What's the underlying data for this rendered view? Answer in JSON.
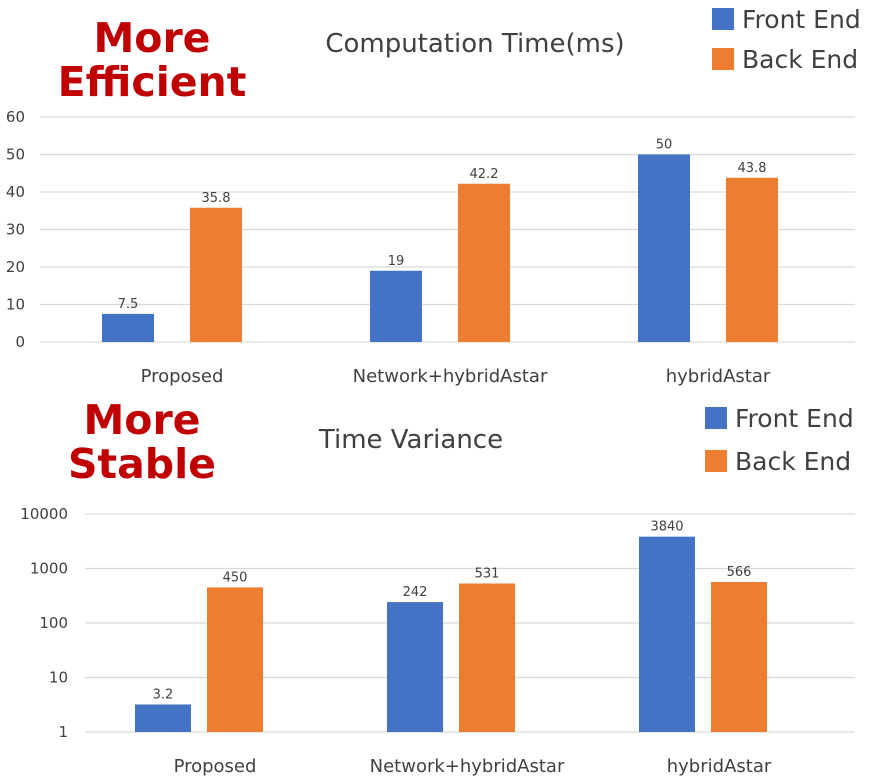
{
  "annotations": {
    "top_line1": "More",
    "top_line2": "Efficient",
    "bottom_line1": "More",
    "bottom_line2": "Stable"
  },
  "colors": {
    "front": "#4472c4",
    "back": "#ed7d31",
    "annotation": "#c00000",
    "grid": "#d9d9d9",
    "axis_text": "#404040"
  },
  "chart_data": [
    {
      "type": "bar",
      "title": "Computation Time(ms)",
      "categories": [
        "Proposed",
        "Network+hybridAstar",
        "hybridAstar"
      ],
      "series": [
        {
          "name": "Front End",
          "values": [
            7.5,
            19,
            50
          ],
          "labels": [
            "7.5",
            "19",
            "50"
          ]
        },
        {
          "name": "Back End",
          "values": [
            35.8,
            42.2,
            43.8
          ],
          "labels": [
            "35.8",
            "42.2",
            "43.8"
          ]
        }
      ],
      "yscale": "linear",
      "ylim": [
        0,
        60
      ],
      "yticks": [
        0,
        10,
        20,
        30,
        40,
        50,
        60
      ],
      "ytick_labels": [
        "0",
        "10",
        "20",
        "30",
        "40",
        "50",
        "60"
      ],
      "legend": "top-right",
      "grid": true
    },
    {
      "type": "bar",
      "title": "Time Variance",
      "categories": [
        "Proposed",
        "Network+hybridAstar",
        "hybridAstar"
      ],
      "series": [
        {
          "name": "Front End",
          "values": [
            3.2,
            242,
            3840
          ],
          "labels": [
            "3.2",
            "242",
            "3840"
          ]
        },
        {
          "name": "Back End",
          "values": [
            450,
            531,
            566
          ],
          "labels": [
            "450",
            "531",
            "566"
          ]
        }
      ],
      "yscale": "log",
      "ylim": [
        1,
        10000
      ],
      "yticks": [
        1,
        10,
        100,
        1000,
        10000
      ],
      "ytick_labels": [
        "1",
        "10",
        "100",
        "1000",
        "10000"
      ],
      "legend": "top-right",
      "grid": true
    }
  ]
}
